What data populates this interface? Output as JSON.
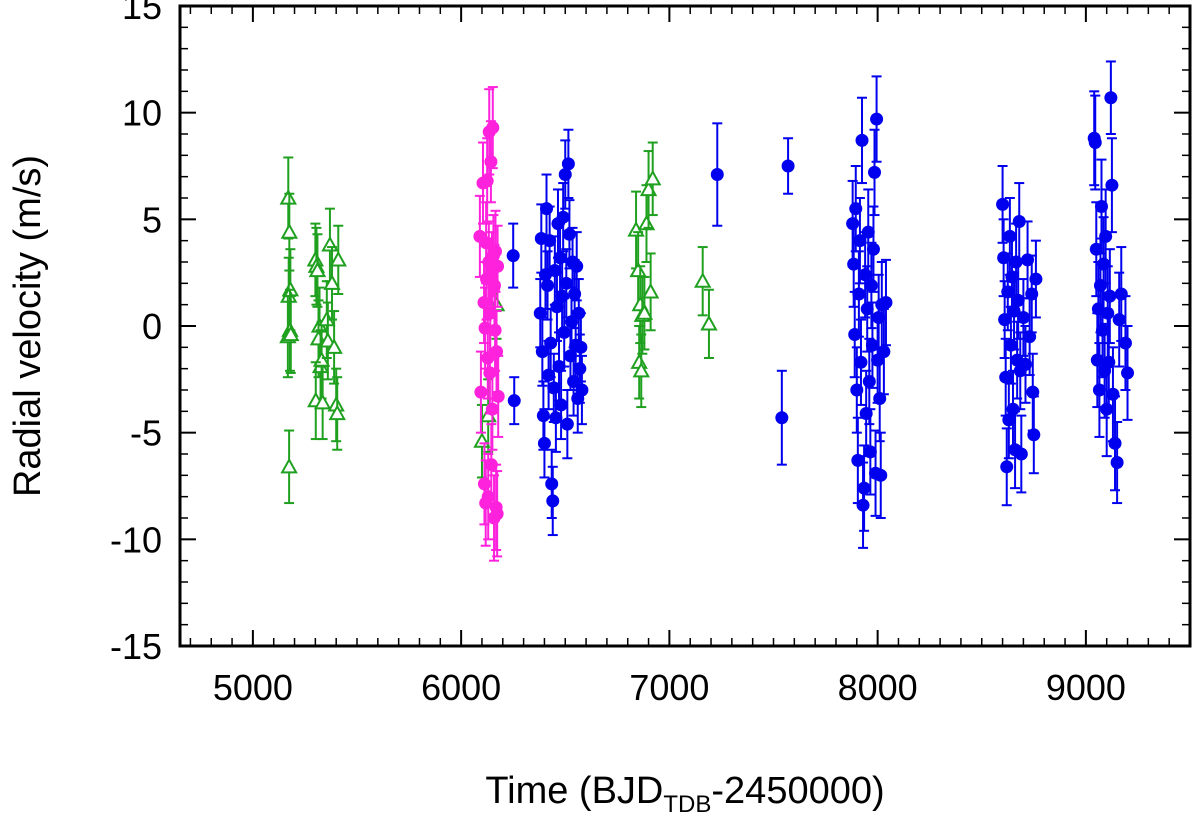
{
  "chart_data": {
    "type": "scatter",
    "title": "",
    "xlabel": {
      "main": "Time (BJD",
      "sub": "TDB",
      "suffix": "-2450000)"
    },
    "ylabel": "Radial velocity (m/s)",
    "xlim": [
      4650,
      9500
    ],
    "ylim": [
      -15,
      15
    ],
    "xticks": [
      5000,
      6000,
      7000,
      8000,
      9000
    ],
    "yticks": [
      -15,
      -10,
      -5,
      0,
      5,
      10,
      15
    ],
    "xtick_labels": [
      "5000",
      "6000",
      "7000",
      "8000",
      "9000"
    ],
    "ytick_labels": [
      "-15",
      "-10",
      "-5",
      "0",
      "5",
      "10",
      "15"
    ],
    "grid": false,
    "legend": "none",
    "series": [
      {
        "color": "#1fa01f",
        "marker": "triangle-open",
        "points": [
          [
            5170,
            6.0,
            1.9
          ],
          [
            5175,
            4.4,
            1.8
          ],
          [
            5180,
            1.7,
            1.9
          ],
          [
            5172,
            1.4,
            1.8
          ],
          [
            5178,
            -0.2,
            1.9
          ],
          [
            5168,
            -0.5,
            1.9
          ],
          [
            5182,
            -0.4,
            1.8
          ],
          [
            5174,
            -6.6,
            1.7
          ],
          [
            5300,
            3.1,
            1.7
          ],
          [
            5305,
            2.8,
            1.8
          ],
          [
            5310,
            2.6,
            1.7
          ],
          [
            5320,
            0.0,
            1.8
          ],
          [
            5315,
            -0.6,
            1.8
          ],
          [
            5325,
            -1.9,
            1.7
          ],
          [
            5330,
            -1.6,
            1.8
          ],
          [
            5302,
            -3.5,
            1.8
          ],
          [
            5335,
            -3.6,
            1.7
          ],
          [
            5355,
            0.3,
            1.8
          ],
          [
            5360,
            -0.7,
            1.8
          ],
          [
            5370,
            3.8,
            1.7
          ],
          [
            5380,
            2.0,
            1.7
          ],
          [
            5390,
            -1.0,
            1.7
          ],
          [
            5400,
            -3.7,
            1.7
          ],
          [
            5410,
            3.1,
            1.6
          ],
          [
            5405,
            -4.1,
            1.7
          ],
          [
            6100,
            -5.4,
            1.7
          ],
          [
            6130,
            -4.2,
            1.7
          ],
          [
            6170,
            1.0,
            1.6
          ],
          [
            6840,
            4.5,
            1.8
          ],
          [
            6850,
            2.6,
            1.8
          ],
          [
            6860,
            1.0,
            1.8
          ],
          [
            6870,
            0.5,
            1.8
          ],
          [
            6855,
            -1.7,
            1.7
          ],
          [
            6865,
            -2.1,
            1.7
          ],
          [
            6880,
            0.6,
            1.7
          ],
          [
            6890,
            4.8,
            1.8
          ],
          [
            6900,
            6.4,
            1.8
          ],
          [
            6920,
            6.9,
            1.7
          ],
          [
            6910,
            1.6,
            1.8
          ],
          [
            7160,
            2.1,
            1.6
          ],
          [
            7190,
            0.1,
            1.6
          ]
        ]
      },
      {
        "color": "#ff22dd",
        "marker": "circle-filled",
        "points": [
          [
            6090,
            4.2,
            1.9
          ],
          [
            6095,
            -3.1,
            1.9
          ],
          [
            6105,
            6.7,
            1.9
          ],
          [
            6110,
            1.1,
            1.9
          ],
          [
            6112,
            -7.4,
            1.9
          ],
          [
            6115,
            -0.1,
            1.9
          ],
          [
            6118,
            -8.3,
            2.0
          ],
          [
            6120,
            3.9,
            1.9
          ],
          [
            6122,
            2.2,
            1.9
          ],
          [
            6125,
            6.8,
            2.0
          ],
          [
            6128,
            -1.5,
            1.9
          ],
          [
            6130,
            -8.0,
            2.0
          ],
          [
            6133,
            3.0,
            1.9
          ],
          [
            6135,
            9.1,
            2.0
          ],
          [
            6138,
            -2.2,
            1.9
          ],
          [
            6140,
            0.6,
            1.9
          ],
          [
            6143,
            7.7,
            1.9
          ],
          [
            6145,
            -6.5,
            1.9
          ],
          [
            6148,
            2.5,
            1.9
          ],
          [
            6150,
            -3.9,
            1.9
          ],
          [
            6152,
            9.3,
            1.9
          ],
          [
            6155,
            3.3,
            1.9
          ],
          [
            6158,
            -9.0,
            2.0
          ],
          [
            6160,
            1.9,
            1.9
          ],
          [
            6163,
            -0.2,
            1.9
          ],
          [
            6165,
            3.5,
            1.9
          ],
          [
            6168,
            -8.5,
            2.0
          ],
          [
            6170,
            -1.2,
            1.9
          ],
          [
            6173,
            -8.8,
            2.0
          ],
          [
            6175,
            2.8,
            1.9
          ],
          [
            6178,
            -3.3,
            1.9
          ]
        ]
      },
      {
        "color": "#0000ee",
        "marker": "circle-filled",
        "points": [
          [
            6250,
            3.3,
            1.5
          ],
          [
            6255,
            -3.5,
            1.1
          ],
          [
            6380,
            0.6,
            1.6
          ],
          [
            6385,
            4.1,
            1.6
          ],
          [
            6390,
            -1.2,
            1.6
          ],
          [
            6395,
            -4.2,
            1.6
          ],
          [
            6400,
            -5.5,
            1.6
          ],
          [
            6405,
            2.4,
            1.6
          ],
          [
            6410,
            5.5,
            1.6
          ],
          [
            6415,
            1.9,
            1.6
          ],
          [
            6420,
            -2.3,
            1.6
          ],
          [
            6425,
            4.0,
            1.6
          ],
          [
            6430,
            -0.8,
            1.6
          ],
          [
            6435,
            -7.4,
            1.6
          ],
          [
            6440,
            -8.2,
            1.6
          ],
          [
            6445,
            -2.9,
            1.6
          ],
          [
            6450,
            2.6,
            1.6
          ],
          [
            6455,
            -4.3,
            1.6
          ],
          [
            6460,
            0.9,
            1.6
          ],
          [
            6465,
            4.8,
            1.6
          ],
          [
            6470,
            -1.9,
            1.6
          ],
          [
            6475,
            3.2,
            1.6
          ],
          [
            6480,
            -3.7,
            1.6
          ],
          [
            6485,
            1.4,
            1.6
          ],
          [
            6490,
            5.1,
            1.6
          ],
          [
            6495,
            -0.3,
            1.6
          ],
          [
            6500,
            7.1,
            1.6
          ],
          [
            6505,
            2.0,
            1.6
          ],
          [
            6510,
            -4.6,
            1.6
          ],
          [
            6515,
            7.6,
            1.6
          ],
          [
            6520,
            4.3,
            1.6
          ],
          [
            6525,
            -1.4,
            1.6
          ],
          [
            6530,
            0.2,
            1.6
          ],
          [
            6535,
            3.0,
            1.6
          ],
          [
            6540,
            -2.6,
            1.6
          ],
          [
            6545,
            1.5,
            1.6
          ],
          [
            6550,
            -0.9,
            1.6
          ],
          [
            6555,
            2.8,
            1.6
          ],
          [
            6560,
            -3.4,
            1.6
          ],
          [
            6565,
            0.6,
            1.6
          ],
          [
            6570,
            -2.0,
            1.6
          ],
          [
            6575,
            -1.0,
            1.6
          ],
          [
            6580,
            -3.0,
            1.6
          ],
          [
            7230,
            7.1,
            2.4
          ],
          [
            7540,
            -4.3,
            2.2
          ],
          [
            7570,
            7.5,
            1.3
          ],
          [
            7880,
            4.8,
            2.0
          ],
          [
            7885,
            2.9,
            2.0
          ],
          [
            7890,
            -0.4,
            2.0
          ],
          [
            7895,
            5.5,
            2.0
          ],
          [
            7900,
            -3.0,
            2.0
          ],
          [
            7905,
            -6.3,
            2.0
          ],
          [
            7910,
            1.5,
            2.0
          ],
          [
            7915,
            4.0,
            2.0
          ],
          [
            7920,
            -1.7,
            2.0
          ],
          [
            7925,
            8.7,
            2.0
          ],
          [
            7930,
            -8.4,
            2.0
          ],
          [
            7935,
            -7.6,
            2.0
          ],
          [
            7940,
            2.4,
            2.0
          ],
          [
            7945,
            -4.1,
            2.0
          ],
          [
            7950,
            0.8,
            2.0
          ],
          [
            7955,
            4.4,
            2.0
          ],
          [
            7960,
            -2.6,
            2.0
          ],
          [
            7965,
            -5.9,
            2.0
          ],
          [
            7970,
            1.9,
            2.0
          ],
          [
            7975,
            -0.9,
            2.0
          ],
          [
            7980,
            3.6,
            2.0
          ],
          [
            7985,
            7.2,
            2.0
          ],
          [
            7990,
            -6.9,
            2.0
          ],
          [
            7995,
            9.7,
            2.0
          ],
          [
            8000,
            -1.6,
            2.0
          ],
          [
            8005,
            0.4,
            2.0
          ],
          [
            8010,
            -3.4,
            2.0
          ],
          [
            8015,
            -7.0,
            2.0
          ],
          [
            8020,
            1.0,
            2.0
          ],
          [
            8030,
            -1.2,
            2.0
          ],
          [
            8040,
            1.1,
            2.0
          ],
          [
            8600,
            5.7,
            1.8
          ],
          [
            8605,
            3.2,
            1.8
          ],
          [
            8610,
            0.3,
            1.8
          ],
          [
            8615,
            -2.4,
            1.8
          ],
          [
            8620,
            -6.6,
            1.8
          ],
          [
            8625,
            1.6,
            1.8
          ],
          [
            8630,
            -4.4,
            1.8
          ],
          [
            8635,
            4.2,
            1.8
          ],
          [
            8640,
            -0.9,
            1.8
          ],
          [
            8645,
            2.3,
            1.8
          ],
          [
            8650,
            -3.9,
            1.8
          ],
          [
            8655,
            0.7,
            1.8
          ],
          [
            8660,
            -5.8,
            1.8
          ],
          [
            8665,
            3.0,
            1.8
          ],
          [
            8670,
            -1.6,
            1.8
          ],
          [
            8675,
            1.2,
            1.8
          ],
          [
            8680,
            4.9,
            1.8
          ],
          [
            8685,
            -2.1,
            1.8
          ],
          [
            8690,
            -6.0,
            1.8
          ],
          [
            8700,
            0.4,
            1.8
          ],
          [
            8710,
            -1.8,
            1.8
          ],
          [
            8720,
            3.1,
            1.8
          ],
          [
            8730,
            -0.5,
            1.8
          ],
          [
            8740,
            1.5,
            1.8
          ],
          [
            8745,
            -3.1,
            1.8
          ],
          [
            8750,
            -5.1,
            1.8
          ],
          [
            8760,
            2.2,
            1.8
          ],
          [
            9040,
            8.8,
            2.2
          ],
          [
            9045,
            8.6,
            2.2
          ],
          [
            9050,
            3.6,
            2.2
          ],
          [
            9055,
            -1.6,
            2.2
          ],
          [
            9060,
            0.8,
            2.2
          ],
          [
            9065,
            -3.0,
            2.2
          ],
          [
            9070,
            1.9,
            2.2
          ],
          [
            9075,
            5.6,
            2.2
          ],
          [
            9080,
            -0.2,
            2.2
          ],
          [
            9085,
            2.9,
            2.2
          ],
          [
            9090,
            -2.1,
            2.2
          ],
          [
            9095,
            4.2,
            2.2
          ],
          [
            9100,
            -3.9,
            2.2
          ],
          [
            9105,
            0.6,
            2.2
          ],
          [
            9110,
            -1.7,
            2.2
          ],
          [
            9115,
            1.4,
            2.2
          ],
          [
            9120,
            10.7,
            1.7
          ],
          [
            9125,
            6.6,
            2.2
          ],
          [
            9130,
            -3.2,
            2.2
          ],
          [
            9140,
            -5.5,
            2.2
          ],
          [
            9150,
            -6.4,
            1.9
          ],
          [
            9160,
            0.3,
            2.2
          ],
          [
            9170,
            1.5,
            2.2
          ],
          [
            9190,
            -0.8,
            2.2
          ],
          [
            9200,
            -2.2,
            2.2
          ]
        ]
      }
    ]
  }
}
